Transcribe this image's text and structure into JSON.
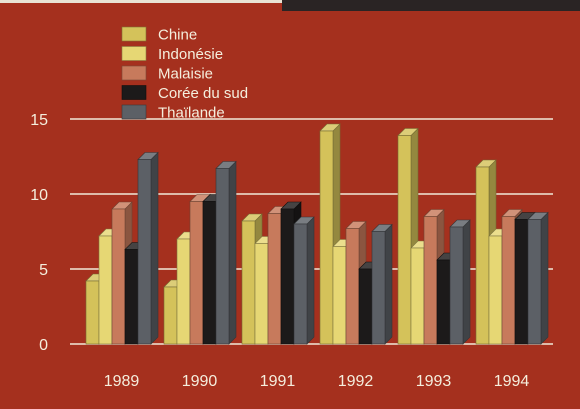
{
  "chart_data": {
    "type": "bar",
    "categories": [
      "1989",
      "1990",
      "1991",
      "1992",
      "1993",
      "1994"
    ],
    "series": [
      {
        "name": "Chine",
        "values": [
          4.2,
          3.8,
          8.2,
          14.2,
          13.9,
          11.8
        ],
        "color": "#d4c25a"
      },
      {
        "name": "Indonésie",
        "values": [
          7.2,
          7.0,
          6.7,
          6.5,
          6.4,
          7.2
        ],
        "color": "#e6d774"
      },
      {
        "name": "Malaisie",
        "values": [
          9.0,
          9.5,
          8.7,
          7.7,
          8.5,
          8.5
        ],
        "color": "#c77a5c"
      },
      {
        "name": "Corée du sud",
        "values": [
          6.3,
          9.5,
          9.0,
          5.0,
          5.6,
          8.3
        ],
        "color": "#1c1a1a"
      },
      {
        "name": "Thaïlande",
        "values": [
          12.3,
          11.7,
          8.0,
          7.5,
          7.8,
          8.3
        ],
        "color": "#5c6066"
      }
    ],
    "y_ticks": [
      "0",
      "5",
      "10",
      "15"
    ],
    "ylim": [
      0,
      15
    ],
    "title": "",
    "xlabel": "",
    "ylabel": "",
    "legend_position": "top-left",
    "grid": true,
    "background_color": "#a5301e",
    "text_color": "#f5eedd"
  }
}
